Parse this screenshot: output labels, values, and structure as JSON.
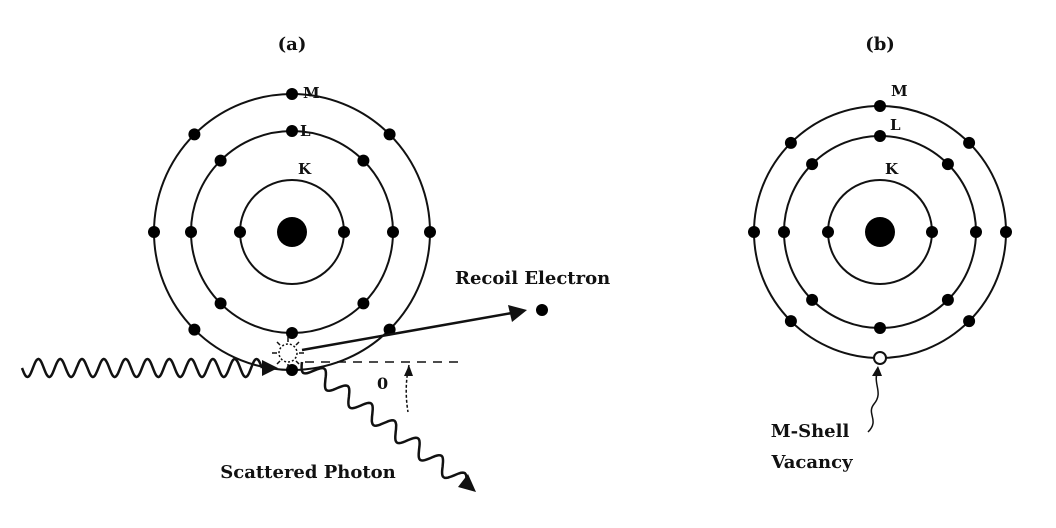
{
  "panels": [
    {
      "id": "a",
      "label": "(a)",
      "shell_labels": {
        "K": "K",
        "L": "L",
        "M": "M"
      },
      "electrons": {
        "K": 2,
        "L": 8,
        "M": 8
      },
      "annotations": {
        "recoil": "Recoil Electron",
        "scattered": "Scattered Photon",
        "angle": "0"
      }
    },
    {
      "id": "b",
      "label": "(b)",
      "shell_labels": {
        "K": "K",
        "L": "L",
        "M": "M"
      },
      "electrons": {
        "K": 2,
        "L": 8,
        "M": 8
      },
      "vacancy_label_line1": "M-Shell",
      "vacancy_label_line2": "Vacancy"
    }
  ]
}
